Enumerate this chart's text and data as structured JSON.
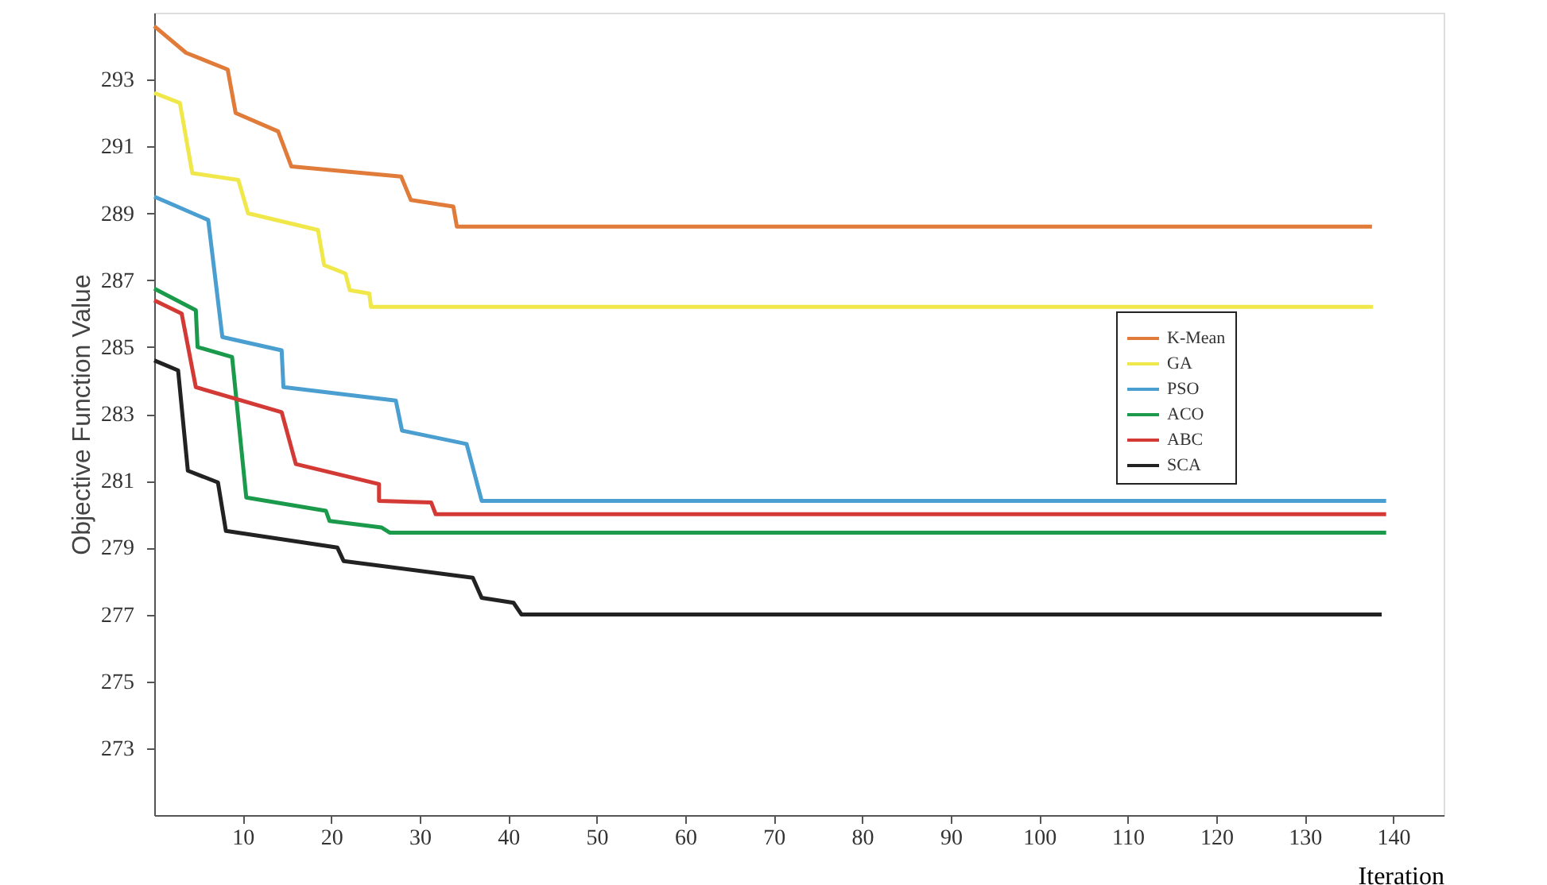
{
  "chart_data": {
    "type": "line",
    "xlabel": "Iteration",
    "ylabel": "Objective Function Value",
    "xlim": [
      0,
      145.7
    ],
    "ylim": [
      271,
      295
    ],
    "xticks": [
      10,
      20,
      30,
      40,
      50,
      60,
      70,
      80,
      90,
      100,
      110,
      120,
      130,
      140
    ],
    "yticks": [
      273,
      275,
      277,
      279,
      281,
      283,
      285,
      287,
      289,
      291,
      293
    ],
    "grid": false,
    "legend": "right",
    "marker": "none",
    "line_style": "solid",
    "series": [
      {
        "name": "K-Mean",
        "color": "#e07b39",
        "x": [
          0,
          3.6,
          8.3,
          9.2,
          14,
          15.5,
          27.9,
          29,
          33.8,
          34.2,
          137.6
        ],
        "values": [
          294.6,
          293.8,
          293.3,
          292.0,
          291.45,
          290.4,
          290.1,
          289.4,
          289.2,
          288.6,
          288.6
        ]
      },
      {
        "name": "GA",
        "color": "#f0e84a",
        "x": [
          0,
          2.9,
          4.3,
          9.5,
          10.6,
          18.5,
          19.2,
          21.6,
          22.1,
          24.3,
          24.5,
          137.7
        ],
        "values": [
          292.6,
          292.3,
          290.2,
          290.0,
          289.0,
          288.5,
          287.45,
          287.2,
          286.7,
          286.6,
          286.2,
          286.2
        ]
      },
      {
        "name": "PSO",
        "color": "#4a9fd0",
        "x": [
          0,
          6.1,
          7.7,
          14.4,
          14.6,
          27.3,
          28,
          35.3,
          37,
          139.2
        ],
        "values": [
          289.5,
          288.8,
          285.3,
          284.9,
          283.8,
          283.4,
          282.5,
          282.1,
          280.4,
          280.4
        ]
      },
      {
        "name": "ACO",
        "color": "#1a9a4a",
        "x": [
          0,
          4.7,
          4.9,
          8.8,
          10.4,
          19.4,
          19.8,
          25.7,
          26.6,
          139.2
        ],
        "values": [
          286.75,
          286.1,
          285.0,
          284.7,
          280.5,
          280.1,
          279.8,
          279.6,
          279.45,
          279.45
        ]
      },
      {
        "name": "ABC",
        "color": "#d43a35",
        "x": [
          0,
          3.1,
          4.7,
          14.4,
          16,
          25.4,
          25.4,
          31.3,
          31.8,
          139.2
        ],
        "values": [
          286.4,
          286.0,
          283.8,
          283.05,
          281.5,
          280.9,
          280.4,
          280.35,
          280.0,
          280.0
        ]
      },
      {
        "name": "SCA",
        "color": "#222222",
        "x": [
          0,
          2.7,
          3.8,
          7.2,
          8.1,
          20.7,
          21.4,
          36,
          37,
          40.6,
          41.5,
          138.7
        ],
        "values": [
          284.6,
          284.3,
          281.3,
          280.95,
          279.5,
          279.0,
          278.6,
          278.1,
          277.5,
          277.35,
          277.0,
          277.0
        ]
      }
    ]
  }
}
